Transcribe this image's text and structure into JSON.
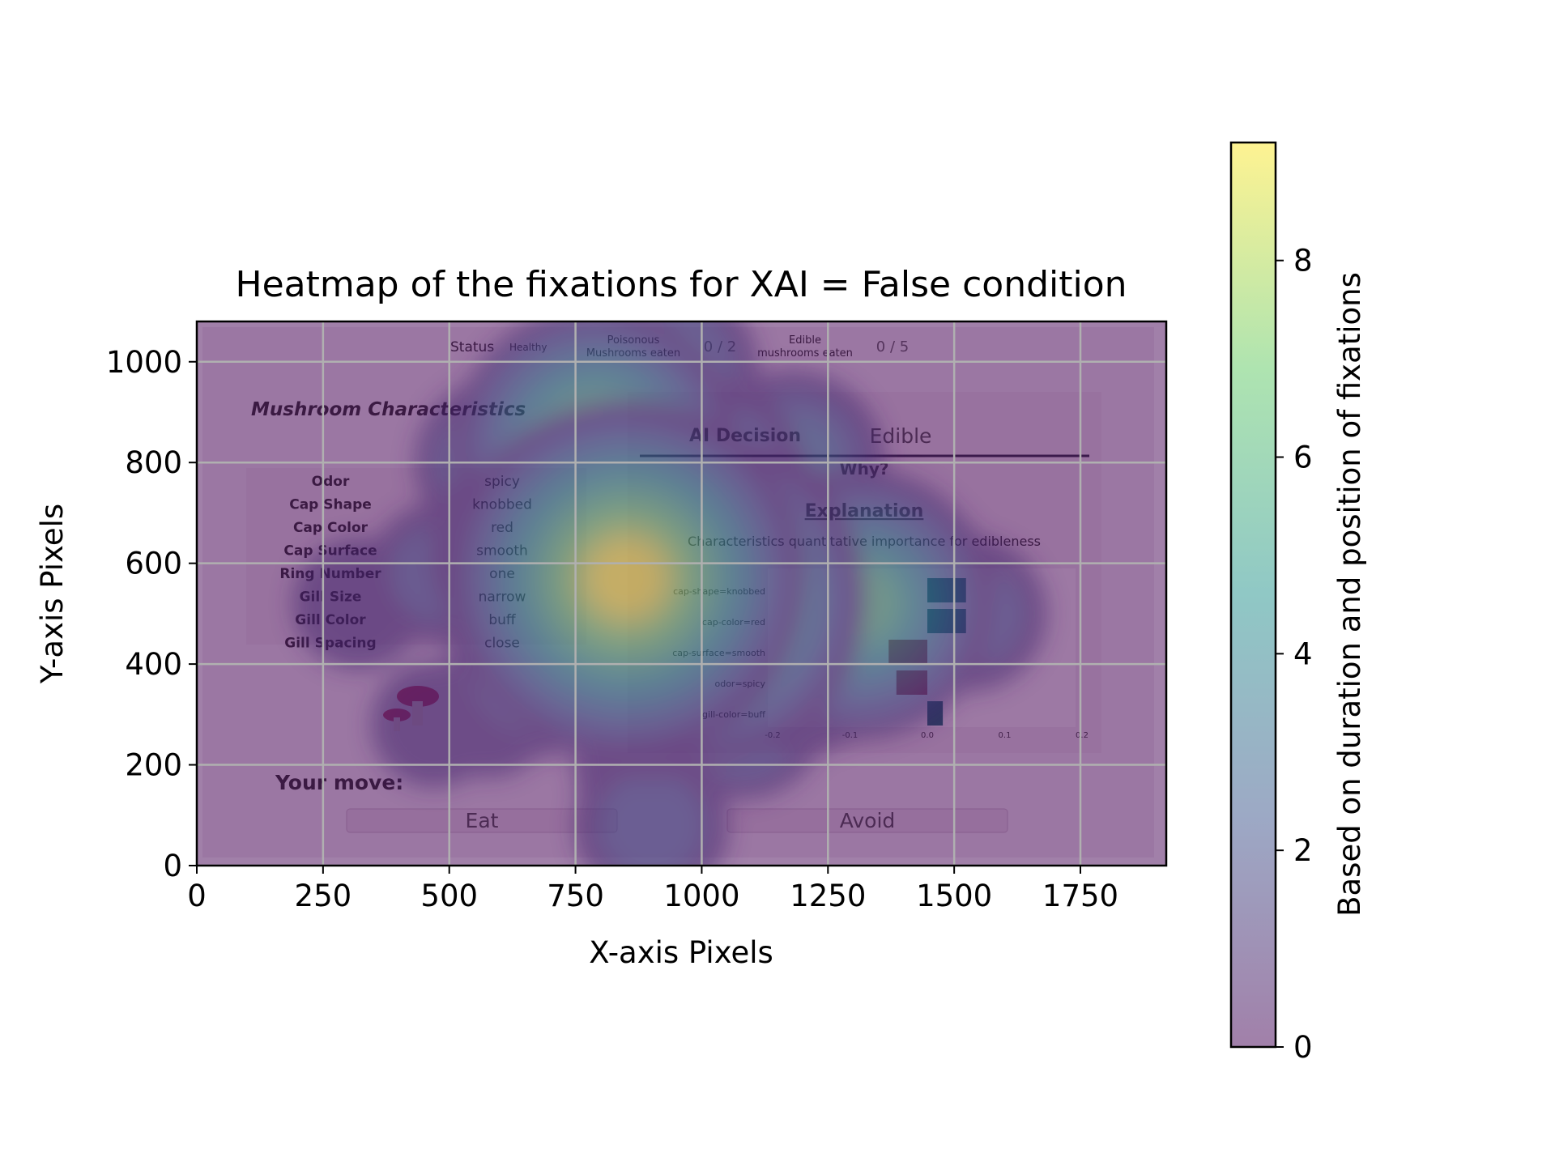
{
  "chart_data": {
    "type": "heatmap",
    "title": "Heatmap of the fixations for XAI = False condition",
    "xlabel": "X-axis Pixels",
    "ylabel": "Y-axis Pixels",
    "xlim": [
      0,
      1920
    ],
    "ylim": [
      0,
      1080
    ],
    "xticks": [
      0,
      250,
      500,
      750,
      1000,
      1250,
      1500,
      1750
    ],
    "yticks": [
      0,
      200,
      400,
      600,
      800,
      1000
    ],
    "grid": true,
    "colorbar": {
      "label": "Based on duration and position of fixations",
      "range": [
        0,
        9.2
      ],
      "ticks": [
        0,
        2,
        4,
        6,
        8
      ],
      "colormap": [
        "#440154",
        "#3b528b",
        "#21918c",
        "#5ec962",
        "#fde725"
      ],
      "alpha": 0.5
    },
    "hotspots": [
      {
        "x": 850,
        "y": 570,
        "value": 9.0
      },
      {
        "x": 1000,
        "y": 530,
        "value": 8.0
      },
      {
        "x": 790,
        "y": 830,
        "value": 6.5
      },
      {
        "x": 800,
        "y": 700,
        "value": 6.0
      },
      {
        "x": 1310,
        "y": 520,
        "value": 6.0
      },
      {
        "x": 700,
        "y": 620,
        "value": 5.0
      },
      {
        "x": 1000,
        "y": 760,
        "value": 4.0
      },
      {
        "x": 1100,
        "y": 600,
        "value": 4.5
      },
      {
        "x": 1200,
        "y": 420,
        "value": 3.5
      },
      {
        "x": 680,
        "y": 400,
        "value": 3.0
      },
      {
        "x": 930,
        "y": 980,
        "value": 3.0
      },
      {
        "x": 1180,
        "y": 800,
        "value": 3.0
      },
      {
        "x": 1400,
        "y": 550,
        "value": 3.0
      },
      {
        "x": 600,
        "y": 800,
        "value": 2.5
      },
      {
        "x": 900,
        "y": 350,
        "value": 3.0
      },
      {
        "x": 1080,
        "y": 300,
        "value": 2.5
      },
      {
        "x": 900,
        "y": 200,
        "value": 2.0
      },
      {
        "x": 900,
        "y": 80,
        "value": 2.0
      },
      {
        "x": 480,
        "y": 580,
        "value": 1.5
      },
      {
        "x": 320,
        "y": 520,
        "value": 1.2
      },
      {
        "x": 470,
        "y": 280,
        "value": 1.0
      },
      {
        "x": 580,
        "y": 300,
        "value": 1.0
      },
      {
        "x": 1530,
        "y": 500,
        "value": 2.0
      },
      {
        "x": 1000,
        "y": 430,
        "value": 4.0
      }
    ]
  },
  "background_ui": {
    "status_label": "Status",
    "status_value": "Healthy",
    "poisonous_label_1": "Poisonous",
    "poisonous_label_2": "Mushrooms eaten",
    "poisonous_count": "0 / 2",
    "edible_label_1": "Edible",
    "edible_label_2": "mushrooms eaten",
    "edible_count": "0 / 5",
    "characteristics_title": "Mushroom Characteristics",
    "characteristics": [
      {
        "name": "Odor",
        "value": "spicy"
      },
      {
        "name": "Cap Shape",
        "value": "knobbed"
      },
      {
        "name": "Cap Color",
        "value": "red"
      },
      {
        "name": "Cap Surface",
        "value": "smooth"
      },
      {
        "name": "Ring Number",
        "value": "one"
      },
      {
        "name": "Gill Size",
        "value": "narrow"
      },
      {
        "name": "Gill Color",
        "value": "buff"
      },
      {
        "name": "Gill Spacing",
        "value": "close"
      }
    ],
    "ai_decision_label": "AI Decision",
    "ai_decision_value": "Edible",
    "why_label": "Why?",
    "explanation_title": "Explanation",
    "explanation_subtitle": "Characteristics quantitative importance for edibleness",
    "importance_bars": [
      {
        "feature": "cap-shape=knobbed",
        "value": 0.05
      },
      {
        "feature": "cap-color=red",
        "value": 0.05
      },
      {
        "feature": "cap-surface=smooth",
        "value": -0.05
      },
      {
        "feature": "odor=spicy",
        "value": -0.04
      },
      {
        "feature": "gill-color=buff",
        "value": 0.02
      }
    ],
    "importance_ticks": [
      "-0.2",
      "-0.1",
      "0.0",
      "0.1",
      "0.2"
    ],
    "your_move_label": "Your move:",
    "eat_button": "Eat",
    "avoid_button": "Avoid"
  }
}
